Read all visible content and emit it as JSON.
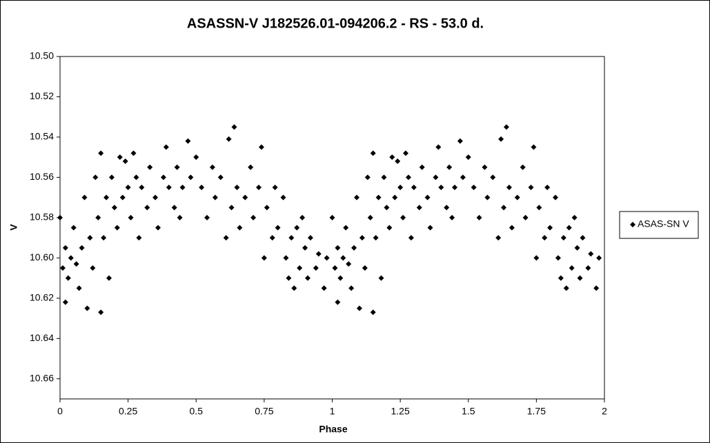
{
  "chart_data": {
    "type": "scatter",
    "title": "ASASSN-V J182526.01-094206.2  - RS - 53.0 d.",
    "xlabel": "Phase",
    "ylabel": "V",
    "xlim": [
      0,
      2
    ],
    "xticks": [
      0,
      0.25,
      0.5,
      0.75,
      1,
      1.25,
      1.5,
      1.75,
      2
    ],
    "ylim": [
      10.5,
      10.67
    ],
    "yinverted": true,
    "yticks": [
      {
        "value": 10.5,
        "label": "10.50"
      },
      10.52,
      10.54,
      10.56,
      10.58,
      {
        "value": 10.6,
        "label": "10.60"
      },
      10.62,
      10.64,
      10.66
    ],
    "grid": false,
    "legend": "right",
    "series": [
      {
        "name": "ASAS-SN V",
        "color": "#000000",
        "x": [
          0,
          0.01,
          0.02,
          0.02,
          0.03,
          0.04,
          0.05,
          0.06,
          0.07,
          0.08,
          0.09,
          0.1,
          0.11,
          0.12,
          0.13,
          0.14,
          0.15,
          0.15,
          0.16,
          0.17,
          0.18,
          0.19,
          0.2,
          0.21,
          0.22,
          0.23,
          0.24,
          0.25,
          0.26,
          0.27,
          0.28,
          0.29,
          0.3,
          0.32,
          0.33,
          0.35,
          0.36,
          0.38,
          0.39,
          0.4,
          0.42,
          0.43,
          0.44,
          0.45,
          0.47,
          0.48,
          0.5,
          0.52,
          0.54,
          0.56,
          0.57,
          0.59,
          0.61,
          0.62,
          0.63,
          0.64,
          0.65,
          0.66,
          0.68,
          0.7,
          0.71,
          0.73,
          0.74,
          0.75,
          0.76,
          0.78,
          0.79,
          0.8,
          0.82,
          0.83,
          0.84,
          0.85,
          0.86,
          0.87,
          0.88,
          0.89,
          0.9,
          0.91,
          0.92,
          0.94,
          0.95,
          0.97,
          0.98,
          1,
          1.01,
          1.02,
          1.02,
          1.03,
          1.04,
          1.05,
          1.06,
          1.07,
          1.08,
          1.09,
          1.1,
          1.11,
          1.12,
          1.13,
          1.14,
          1.15,
          1.15,
          1.16,
          1.17,
          1.18,
          1.19,
          1.2,
          1.21,
          1.22,
          1.23,
          1.24,
          1.25,
          1.26,
          1.27,
          1.28,
          1.29,
          1.3,
          1.32,
          1.33,
          1.35,
          1.36,
          1.38,
          1.39,
          1.4,
          1.42,
          1.43,
          1.44,
          1.45,
          1.47,
          1.48,
          1.5,
          1.52,
          1.54,
          1.56,
          1.57,
          1.59,
          1.61,
          1.62,
          1.63,
          1.64,
          1.65,
          1.66,
          1.68,
          1.7,
          1.71,
          1.73,
          1.74,
          1.75,
          1.76,
          1.78,
          1.79,
          1.8,
          1.82,
          1.83,
          1.84,
          1.85,
          1.86,
          1.87,
          1.88,
          1.89,
          1.9,
          1.91,
          1.92,
          1.94,
          1.95,
          1.97,
          1.98
        ],
        "values": [
          10.58,
          10.605,
          10.595,
          10.622,
          10.61,
          10.6,
          10.585,
          10.603,
          10.615,
          10.595,
          10.57,
          10.625,
          10.59,
          10.605,
          10.56,
          10.58,
          10.548,
          10.627,
          10.59,
          10.57,
          10.61,
          10.56,
          10.575,
          10.585,
          10.55,
          10.57,
          10.552,
          10.565,
          10.58,
          10.548,
          10.56,
          10.59,
          10.565,
          10.575,
          10.555,
          10.57,
          10.585,
          10.56,
          10.545,
          10.565,
          10.575,
          10.555,
          10.58,
          10.565,
          10.542,
          10.56,
          10.55,
          10.565,
          10.58,
          10.555,
          10.57,
          10.56,
          10.59,
          10.541,
          10.575,
          10.535,
          10.565,
          10.585,
          10.57,
          10.555,
          10.58,
          10.565,
          10.545,
          10.6,
          10.575,
          10.59,
          10.565,
          10.585,
          10.57,
          10.6,
          10.61,
          10.59,
          10.615,
          10.585,
          10.605,
          10.58,
          10.595,
          10.61,
          10.59,
          10.605,
          10.598,
          10.615,
          10.6,
          10.58,
          10.605,
          10.595,
          10.622,
          10.61,
          10.6,
          10.585,
          10.603,
          10.615,
          10.595,
          10.57,
          10.625,
          10.59,
          10.605,
          10.56,
          10.58,
          10.548,
          10.627,
          10.59,
          10.57,
          10.61,
          10.56,
          10.575,
          10.585,
          10.55,
          10.57,
          10.552,
          10.565,
          10.58,
          10.548,
          10.56,
          10.59,
          10.565,
          10.575,
          10.555,
          10.57,
          10.585,
          10.56,
          10.545,
          10.565,
          10.575,
          10.555,
          10.58,
          10.565,
          10.542,
          10.56,
          10.55,
          10.565,
          10.58,
          10.555,
          10.57,
          10.56,
          10.59,
          10.541,
          10.575,
          10.535,
          10.565,
          10.585,
          10.57,
          10.555,
          10.58,
          10.565,
          10.545,
          10.6,
          10.575,
          10.59,
          10.565,
          10.585,
          10.57,
          10.6,
          10.61,
          10.59,
          10.615,
          10.585,
          10.605,
          10.58,
          10.595,
          10.61,
          10.59,
          10.605,
          10.598,
          10.615,
          10.6
        ]
      }
    ]
  }
}
